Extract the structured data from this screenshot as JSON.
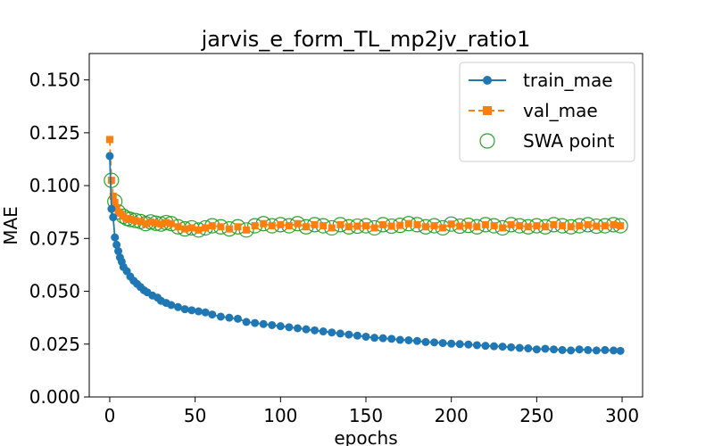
{
  "chart_data": {
    "type": "line",
    "title": "jarvis_e_form_TL_mp2jv_ratio1",
    "xlabel": "epochs",
    "ylabel": "MAE",
    "xlim": [
      -12,
      312
    ],
    "ylim": [
      0,
      0.1625
    ],
    "x_ticks": [
      0,
      50,
      100,
      150,
      200,
      250,
      300
    ],
    "y_ticks": [
      0.0,
      0.025,
      0.05,
      0.075,
      0.1,
      0.125,
      0.15
    ],
    "y_tick_labels": [
      "0.000",
      "0.025",
      "0.050",
      "0.075",
      "0.100",
      "0.125",
      "0.150"
    ],
    "legend_position": "top-right",
    "colors": {
      "train": "#1f77b4",
      "val": "#ff7f0e",
      "swa": "#2ca02c"
    },
    "series": [
      {
        "name": "train_mae",
        "style": "solid line with circle markers",
        "x": [
          0,
          1,
          2,
          3,
          4,
          5,
          6,
          7,
          8,
          10,
          12,
          14,
          16,
          18,
          20,
          22,
          25,
          28,
          30,
          33,
          36,
          40,
          44,
          48,
          52,
          56,
          60,
          65,
          70,
          75,
          80,
          85,
          90,
          95,
          100,
          105,
          110,
          115,
          120,
          125,
          130,
          135,
          140,
          145,
          150,
          155,
          160,
          165,
          170,
          175,
          180,
          185,
          190,
          195,
          200,
          205,
          210,
          215,
          220,
          225,
          230,
          235,
          240,
          245,
          250,
          255,
          260,
          265,
          270,
          275,
          280,
          285,
          290,
          295,
          299
        ],
        "values": [
          0.114,
          0.089,
          0.085,
          0.0755,
          0.072,
          0.069,
          0.066,
          0.064,
          0.0615,
          0.0595,
          0.057,
          0.055,
          0.0535,
          0.052,
          0.0505,
          0.0495,
          0.048,
          0.047,
          0.0455,
          0.0445,
          0.0435,
          0.0425,
          0.0415,
          0.041,
          0.0405,
          0.04,
          0.039,
          0.038,
          0.0375,
          0.037,
          0.0355,
          0.035,
          0.0345,
          0.034,
          0.0335,
          0.033,
          0.0325,
          0.032,
          0.0315,
          0.031,
          0.0305,
          0.03,
          0.0295,
          0.029,
          0.0285,
          0.028,
          0.0278,
          0.0275,
          0.027,
          0.0268,
          0.0265,
          0.026,
          0.0258,
          0.0255,
          0.0252,
          0.025,
          0.0248,
          0.0245,
          0.0242,
          0.024,
          0.0238,
          0.0235,
          0.0232,
          0.023,
          0.0225,
          0.0228,
          0.0225,
          0.0222,
          0.022,
          0.0225,
          0.0222,
          0.022,
          0.0222,
          0.022,
          0.0218
        ]
      },
      {
        "name": "val_mae",
        "style": "dashed line with square markers",
        "x": [
          0,
          1,
          2,
          3,
          4,
          5,
          6,
          8,
          10,
          12,
          15,
          18,
          21,
          24,
          27,
          30,
          33,
          36,
          40,
          44,
          48,
          52,
          56,
          60,
          65,
          70,
          75,
          80,
          85,
          90,
          95,
          100,
          105,
          110,
          115,
          120,
          125,
          130,
          135,
          140,
          145,
          150,
          155,
          160,
          165,
          170,
          175,
          180,
          185,
          190,
          195,
          200,
          205,
          210,
          215,
          220,
          225,
          230,
          235,
          240,
          245,
          250,
          255,
          260,
          265,
          270,
          275,
          280,
          285,
          290,
          295,
          299
        ],
        "values": [
          0.1218,
          0.1025,
          0.095,
          0.092,
          0.0895,
          0.0875,
          0.087,
          0.0855,
          0.0845,
          0.084,
          0.0835,
          0.083,
          0.082,
          0.0828,
          0.0822,
          0.0818,
          0.0825,
          0.082,
          0.0805,
          0.0795,
          0.08,
          0.079,
          0.08,
          0.081,
          0.0805,
          0.0795,
          0.0805,
          0.079,
          0.081,
          0.082,
          0.081,
          0.0815,
          0.081,
          0.082,
          0.0805,
          0.0815,
          0.081,
          0.08,
          0.0815,
          0.0805,
          0.0808,
          0.081,
          0.08,
          0.0815,
          0.0808,
          0.0812,
          0.082,
          0.0815,
          0.0805,
          0.081,
          0.08,
          0.0818,
          0.0808,
          0.0812,
          0.0805,
          0.0815,
          0.081,
          0.08,
          0.0815,
          0.081,
          0.0805,
          0.081,
          0.0805,
          0.0815,
          0.081,
          0.0805,
          0.081,
          0.0815,
          0.0808,
          0.081,
          0.0815,
          0.081
        ]
      },
      {
        "name": "SWA point",
        "style": "open circle markers",
        "x": [
          1,
          3,
          5,
          8,
          10,
          12,
          15,
          18,
          21,
          24,
          27,
          30,
          33,
          36,
          40,
          44,
          48,
          52,
          56,
          60,
          65,
          70,
          75,
          80,
          85,
          90,
          95,
          100,
          105,
          110,
          115,
          120,
          125,
          130,
          135,
          140,
          145,
          150,
          155,
          160,
          165,
          170,
          175,
          180,
          185,
          190,
          195,
          200,
          205,
          210,
          215,
          220,
          225,
          230,
          235,
          240,
          245,
          250,
          255,
          260,
          265,
          270,
          275,
          280,
          285,
          290,
          295,
          299
        ],
        "values": [
          0.1025,
          0.0925,
          0.0875,
          0.0855,
          0.0845,
          0.084,
          0.0835,
          0.083,
          0.082,
          0.0828,
          0.0822,
          0.0818,
          0.0825,
          0.082,
          0.0805,
          0.0795,
          0.08,
          0.079,
          0.08,
          0.081,
          0.0805,
          0.0795,
          0.0805,
          0.079,
          0.081,
          0.082,
          0.081,
          0.0815,
          0.081,
          0.082,
          0.0805,
          0.0815,
          0.081,
          0.08,
          0.0815,
          0.0805,
          0.0808,
          0.081,
          0.08,
          0.0815,
          0.0808,
          0.0812,
          0.082,
          0.0815,
          0.0805,
          0.081,
          0.08,
          0.0818,
          0.0808,
          0.0812,
          0.0805,
          0.0815,
          0.081,
          0.08,
          0.0815,
          0.081,
          0.0805,
          0.081,
          0.0805,
          0.0815,
          0.081,
          0.0805,
          0.081,
          0.0815,
          0.0808,
          0.081,
          0.0815,
          0.081
        ]
      }
    ]
  }
}
